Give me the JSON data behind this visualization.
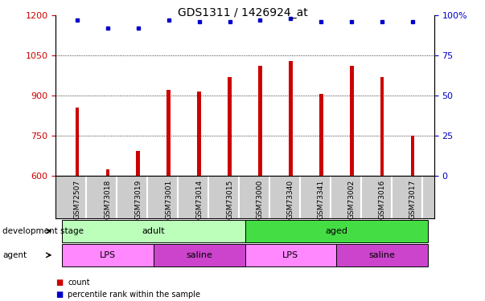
{
  "title": "GDS1311 / 1426924_at",
  "samples": [
    "GSM72507",
    "GSM73018",
    "GSM73019",
    "GSM73001",
    "GSM73014",
    "GSM73015",
    "GSM73000",
    "GSM73340",
    "GSM73341",
    "GSM73002",
    "GSM73016",
    "GSM73017"
  ],
  "counts": [
    855,
    625,
    695,
    920,
    915,
    970,
    1010,
    1030,
    905,
    1010,
    970,
    750
  ],
  "percentile_ranks": [
    97,
    92,
    92,
    97,
    96,
    96,
    97,
    98,
    96,
    96,
    96,
    96
  ],
  "ylim_left": [
    600,
    1200
  ],
  "ylim_right": [
    0,
    100
  ],
  "yticks_left": [
    600,
    750,
    900,
    1050,
    1200
  ],
  "yticks_right": [
    0,
    25,
    50,
    75,
    100
  ],
  "ytick_right_labels": [
    "0",
    "25",
    "50",
    "75",
    "100%"
  ],
  "bar_color": "#cc0000",
  "dot_color": "#0000cc",
  "bar_width": 0.12,
  "development_stage_labels": [
    {
      "label": "adult",
      "start": 0,
      "end": 5,
      "color": "#bbffbb"
    },
    {
      "label": "aged",
      "start": 6,
      "end": 11,
      "color": "#44dd44"
    }
  ],
  "agent_labels": [
    {
      "label": "LPS",
      "start": 0,
      "end": 2,
      "color": "#ff88ff"
    },
    {
      "label": "saline",
      "start": 3,
      "end": 5,
      "color": "#cc44cc"
    },
    {
      "label": "LPS",
      "start": 6,
      "end": 8,
      "color": "#ff88ff"
    },
    {
      "label": "saline",
      "start": 9,
      "end": 11,
      "color": "#cc44cc"
    }
  ],
  "sample_box_color": "#cccccc",
  "title_fontsize": 10,
  "tick_fontsize": 8,
  "bar_color_hex": "#bb0000",
  "dot_color_hex": "#0000bb"
}
